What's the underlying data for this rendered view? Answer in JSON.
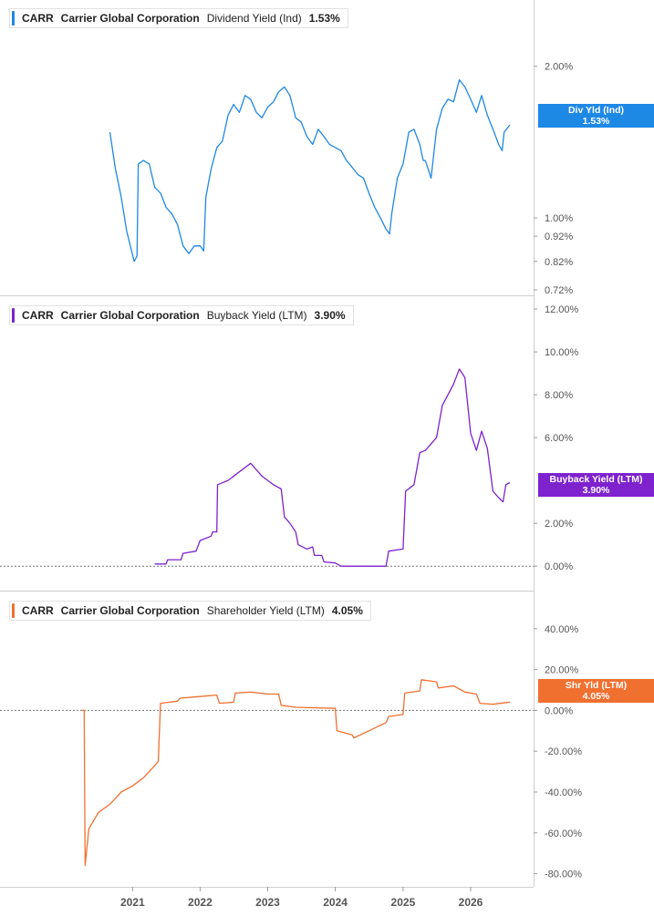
{
  "ticker": "CARR",
  "company": "Carrier Global Corporation",
  "x_axis_years": [
    "2021",
    "2022",
    "2023",
    "2024",
    "2025",
    "2026"
  ],
  "chart_data": [
    {
      "type": "line",
      "metric": "Dividend Yield (Ind)",
      "current_value": "1.53%",
      "badge": [
        "Div Yld (Ind)",
        "1.53%"
      ],
      "color": "#1e88e5",
      "y_scale": "log",
      "ylim": [
        0.72,
        2.45
      ],
      "yticks": [
        2.0,
        1.0,
        0.92,
        0.82,
        0.72
      ],
      "ytick_labels": [
        "2.00%",
        "1.00%",
        "0.92%",
        "0.82%",
        "0.72%"
      ],
      "series": [
        {
          "points": [
            [
              "2020-09-01",
              1.48
            ],
            [
              "2020-10-01",
              1.25
            ],
            [
              "2020-11-01",
              1.1
            ],
            [
              "2020-12-01",
              0.94
            ],
            [
              "2021-01-10",
              0.82
            ],
            [
              "2021-01-25",
              0.84
            ],
            [
              "2021-02-01",
              1.28
            ],
            [
              "2021-03-01",
              1.3
            ],
            [
              "2021-04-01",
              1.28
            ],
            [
              "2021-05-01",
              1.15
            ],
            [
              "2021-06-01",
              1.12
            ],
            [
              "2021-07-01",
              1.05
            ],
            [
              "2021-08-01",
              1.02
            ],
            [
              "2021-09-01",
              0.97
            ],
            [
              "2021-10-01",
              0.88
            ],
            [
              "2021-11-01",
              0.85
            ],
            [
              "2021-12-01",
              0.88
            ],
            [
              "2022-01-01",
              0.88
            ],
            [
              "2022-01-20",
              0.86
            ],
            [
              "2022-02-01",
              1.1
            ],
            [
              "2022-03-01",
              1.25
            ],
            [
              "2022-04-01",
              1.38
            ],
            [
              "2022-05-01",
              1.42
            ],
            [
              "2022-06-01",
              1.6
            ],
            [
              "2022-07-01",
              1.68
            ],
            [
              "2022-08-01",
              1.62
            ],
            [
              "2022-09-01",
              1.75
            ],
            [
              "2022-10-01",
              1.72
            ],
            [
              "2022-11-01",
              1.62
            ],
            [
              "2022-12-01",
              1.58
            ],
            [
              "2023-01-01",
              1.66
            ],
            [
              "2023-02-01",
              1.7
            ],
            [
              "2023-03-01",
              1.78
            ],
            [
              "2023-04-01",
              1.82
            ],
            [
              "2023-05-01",
              1.75
            ],
            [
              "2023-06-01",
              1.58
            ],
            [
              "2023-07-01",
              1.55
            ],
            [
              "2023-08-01",
              1.45
            ],
            [
              "2023-09-01",
              1.4
            ],
            [
              "2023-10-01",
              1.5
            ],
            [
              "2023-11-01",
              1.45
            ],
            [
              "2023-12-01",
              1.4
            ],
            [
              "2024-01-01",
              1.38
            ],
            [
              "2024-02-01",
              1.36
            ],
            [
              "2024-03-01",
              1.3
            ],
            [
              "2024-04-01",
              1.26
            ],
            [
              "2024-05-01",
              1.22
            ],
            [
              "2024-06-01",
              1.2
            ],
            [
              "2024-07-01",
              1.12
            ],
            [
              "2024-08-01",
              1.05
            ],
            [
              "2024-09-01",
              1.0
            ],
            [
              "2024-10-01",
              0.95
            ],
            [
              "2024-10-20",
              0.93
            ],
            [
              "2024-11-01",
              1.02
            ],
            [
              "2024-12-01",
              1.2
            ],
            [
              "2025-01-01",
              1.28
            ],
            [
              "2025-02-01",
              1.48
            ],
            [
              "2025-03-01",
              1.5
            ],
            [
              "2025-04-01",
              1.4
            ],
            [
              "2025-04-20",
              1.3
            ],
            [
              "2025-05-01",
              1.3
            ],
            [
              "2025-06-01",
              1.2
            ],
            [
              "2025-07-01",
              1.5
            ],
            [
              "2025-08-01",
              1.65
            ],
            [
              "2025-09-01",
              1.72
            ],
            [
              "2025-10-01",
              1.7
            ],
            [
              "2025-11-01",
              1.88
            ],
            [
              "2025-12-01",
              1.82
            ],
            [
              "2026-01-01",
              1.72
            ],
            [
              "2026-02-01",
              1.62
            ],
            [
              "2026-03-01",
              1.75
            ],
            [
              "2026-04-01",
              1.6
            ],
            [
              "2026-05-01",
              1.5
            ],
            [
              "2026-06-01",
              1.4
            ],
            [
              "2026-06-20",
              1.36
            ],
            [
              "2026-07-01",
              1.48
            ],
            [
              "2026-08-01",
              1.53
            ]
          ]
        }
      ]
    },
    {
      "type": "line",
      "metric": "Buyback Yield (LTM)",
      "current_value": "3.90%",
      "badge": [
        "Buyback Yield (LTM)",
        "3.90%"
      ],
      "color": "#7e22ce",
      "ylim": [
        -0.8,
        12.3
      ],
      "yticks": [
        12,
        10,
        8,
        6,
        2,
        0
      ],
      "ytick_labels": [
        "12.00%",
        "10.00%",
        "8.00%",
        "6.00%",
        "2.00%",
        "0.00%"
      ],
      "zero_line": true,
      "series": [
        {
          "points": [
            [
              "2021-05-01",
              0.1
            ],
            [
              "2021-07-01",
              0.1
            ],
            [
              "2021-07-10",
              0.3
            ],
            [
              "2021-09-20",
              0.3
            ],
            [
              "2021-10-01",
              0.6
            ],
            [
              "2021-12-10",
              0.7
            ],
            [
              "2022-01-01",
              1.2
            ],
            [
              "2022-03-01",
              1.4
            ],
            [
              "2022-03-10",
              1.6
            ],
            [
              "2022-04-01",
              1.6
            ],
            [
              "2022-04-05",
              3.8
            ],
            [
              "2022-06-01",
              4.0
            ],
            [
              "2022-08-01",
              4.4
            ],
            [
              "2022-10-01",
              4.8
            ],
            [
              "2022-11-01",
              4.5
            ],
            [
              "2022-12-01",
              4.2
            ],
            [
              "2023-01-01",
              4.0
            ],
            [
              "2023-02-01",
              3.8
            ],
            [
              "2023-03-15",
              3.6
            ],
            [
              "2023-04-01",
              2.3
            ],
            [
              "2023-05-01",
              2.0
            ],
            [
              "2023-06-01",
              1.6
            ],
            [
              "2023-06-15",
              1.0
            ],
            [
              "2023-08-01",
              0.8
            ],
            [
              "2023-09-01",
              0.9
            ],
            [
              "2023-09-10",
              0.5
            ],
            [
              "2023-10-20",
              0.5
            ],
            [
              "2023-11-01",
              0.2
            ],
            [
              "2024-01-01",
              0.15
            ],
            [
              "2024-02-01",
              0.0
            ],
            [
              "2024-10-01",
              0.0
            ],
            [
              "2024-10-15",
              0.7
            ],
            [
              "2025-01-01",
              0.8
            ],
            [
              "2025-01-15",
              3.5
            ],
            [
              "2025-03-01",
              3.8
            ],
            [
              "2025-04-01",
              5.3
            ],
            [
              "2025-05-01",
              5.4
            ],
            [
              "2025-07-01",
              6.0
            ],
            [
              "2025-08-01",
              7.5
            ],
            [
              "2025-10-01",
              8.5
            ],
            [
              "2025-11-01",
              9.2
            ],
            [
              "2025-12-01",
              8.8
            ],
            [
              "2026-01-01",
              6.2
            ],
            [
              "2026-02-01",
              5.4
            ],
            [
              "2026-03-01",
              6.3
            ],
            [
              "2026-04-01",
              5.5
            ],
            [
              "2026-05-01",
              3.5
            ],
            [
              "2026-06-01",
              3.2
            ],
            [
              "2026-06-25",
              3.0
            ],
            [
              "2026-07-10",
              3.8
            ],
            [
              "2026-08-01",
              3.9
            ]
          ]
        }
      ]
    },
    {
      "type": "line",
      "metric": "Shareholder Yield (LTM)",
      "current_value": "4.05%",
      "badge": [
        "Shr Yld (LTM)",
        "4.05%"
      ],
      "color": "#f07030",
      "ylim": [
        -86,
        56
      ],
      "yticks": [
        40,
        20,
        0,
        -20,
        -40,
        -60,
        -80
      ],
      "ytick_labels": [
        "40.00%",
        "20.00%",
        "0.00%",
        "-20.00%",
        "-40.00%",
        "-60.00%",
        "-80.00%"
      ],
      "zero_line": true,
      "series": [
        {
          "points": [
            [
              "2020-04-01",
              0.0
            ],
            [
              "2020-04-15",
              0.0
            ],
            [
              "2020-04-20",
              -76.0
            ],
            [
              "2020-05-10",
              -58.0
            ],
            [
              "2020-07-01",
              -50.0
            ],
            [
              "2020-09-01",
              -46.0
            ],
            [
              "2020-11-01",
              -40.0
            ],
            [
              "2021-01-01",
              -37.0
            ],
            [
              "2021-03-01",
              -33.0
            ],
            [
              "2021-05-01",
              -27.0
            ],
            [
              "2021-05-20",
              -25.0
            ],
            [
              "2021-06-01",
              3.5
            ],
            [
              "2021-09-01",
              4.5
            ],
            [
              "2021-09-15",
              6.0
            ],
            [
              "2022-01-01",
              6.8
            ],
            [
              "2022-04-01",
              7.5
            ],
            [
              "2022-04-15",
              3.5
            ],
            [
              "2022-07-01",
              4.0
            ],
            [
              "2022-07-10",
              8.5
            ],
            [
              "2022-10-01",
              9.0
            ],
            [
              "2023-01-01",
              8.0
            ],
            [
              "2023-03-01",
              8.0
            ],
            [
              "2023-03-15",
              2.5
            ],
            [
              "2023-06-01",
              1.5
            ],
            [
              "2024-01-01",
              1.0
            ],
            [
              "2024-01-10",
              -10.0
            ],
            [
              "2024-04-01",
              -12.0
            ],
            [
              "2024-04-10",
              -13.5
            ],
            [
              "2024-07-01",
              -10.0
            ],
            [
              "2024-10-01",
              -6.0
            ],
            [
              "2024-10-15",
              -3.0
            ],
            [
              "2025-01-01",
              -2.0
            ],
            [
              "2025-01-10",
              8.5
            ],
            [
              "2025-04-01",
              9.5
            ],
            [
              "2025-04-10",
              15.0
            ],
            [
              "2025-07-01",
              14.0
            ],
            [
              "2025-07-10",
              11.0
            ],
            [
              "2025-10-01",
              12.0
            ],
            [
              "2025-12-01",
              9.0
            ],
            [
              "2026-02-01",
              8.0
            ],
            [
              "2026-02-20",
              3.5
            ],
            [
              "2026-05-01",
              3.0
            ],
            [
              "2026-08-01",
              4.05
            ]
          ]
        }
      ]
    }
  ]
}
